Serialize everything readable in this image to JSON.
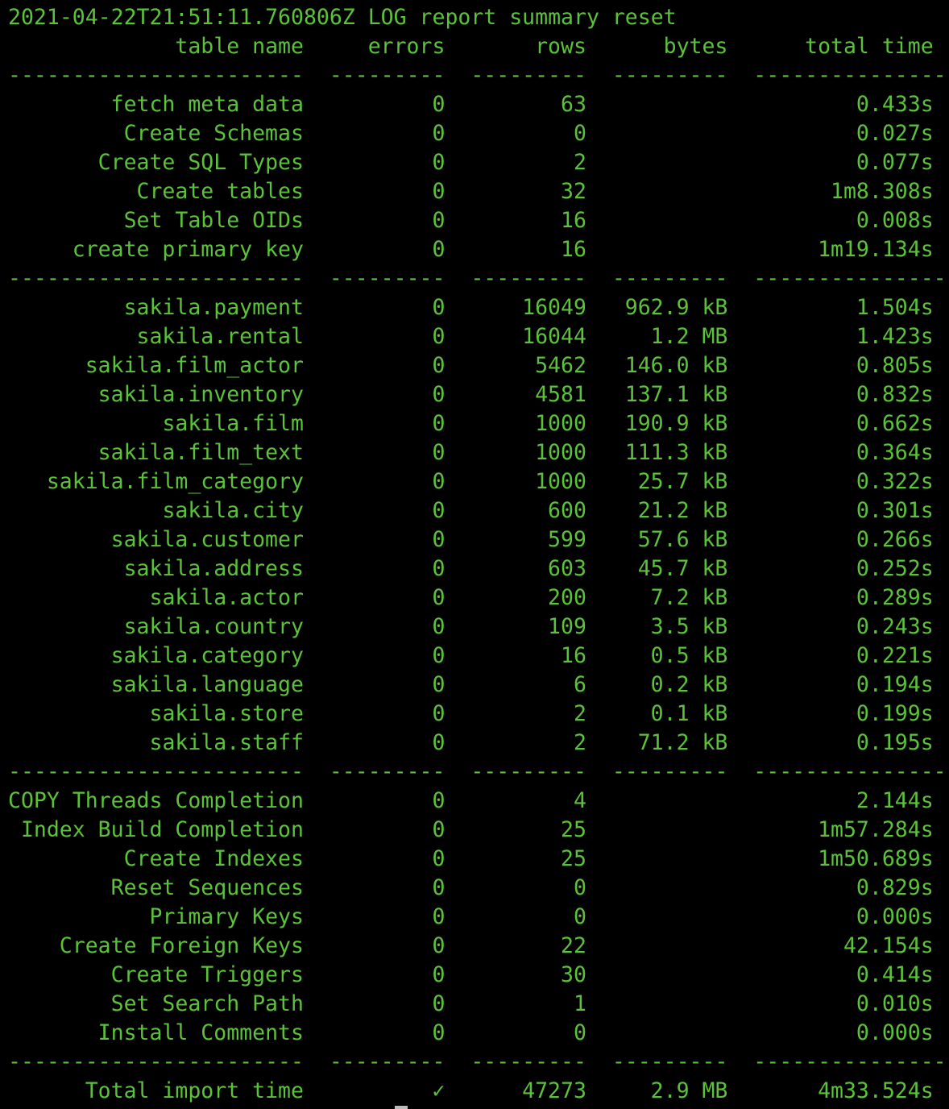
{
  "terminal": {
    "log_line": "2021-04-22T21:51:11.760806Z LOG report summary reset",
    "text_color": "#5cc13b",
    "background": "#000000",
    "headers": [
      "table name",
      "errors",
      "rows",
      "bytes",
      "total time"
    ],
    "separator": [
      "-----------------------",
      "---------",
      "---------",
      "---------",
      "---------------"
    ],
    "sections": [
      [
        [
          "fetch meta data",
          "0",
          "63",
          "",
          "0.433s"
        ],
        [
          "Create Schemas",
          "0",
          "0",
          "",
          "0.027s"
        ],
        [
          "Create SQL Types",
          "0",
          "2",
          "",
          "0.077s"
        ],
        [
          "Create tables",
          "0",
          "32",
          "",
          "1m8.308s"
        ],
        [
          "Set Table OIDs",
          "0",
          "16",
          "",
          "0.008s"
        ],
        [
          "create primary key",
          "0",
          "16",
          "",
          "1m19.134s"
        ]
      ],
      [
        [
          "sakila.payment",
          "0",
          "16049",
          "962.9 kB",
          "1.504s"
        ],
        [
          "sakila.rental",
          "0",
          "16044",
          "1.2 MB",
          "1.423s"
        ],
        [
          "sakila.film_actor",
          "0",
          "5462",
          "146.0 kB",
          "0.805s"
        ],
        [
          "sakila.inventory",
          "0",
          "4581",
          "137.1 kB",
          "0.832s"
        ],
        [
          "sakila.film",
          "0",
          "1000",
          "190.9 kB",
          "0.662s"
        ],
        [
          "sakila.film_text",
          "0",
          "1000",
          "111.3 kB",
          "0.364s"
        ],
        [
          "sakila.film_category",
          "0",
          "1000",
          "25.7 kB",
          "0.322s"
        ],
        [
          "sakila.city",
          "0",
          "600",
          "21.2 kB",
          "0.301s"
        ],
        [
          "sakila.customer",
          "0",
          "599",
          "57.6 kB",
          "0.266s"
        ],
        [
          "sakila.address",
          "0",
          "603",
          "45.7 kB",
          "0.252s"
        ],
        [
          "sakila.actor",
          "0",
          "200",
          "7.2 kB",
          "0.289s"
        ],
        [
          "sakila.country",
          "0",
          "109",
          "3.5 kB",
          "0.243s"
        ],
        [
          "sakila.category",
          "0",
          "16",
          "0.5 kB",
          "0.221s"
        ],
        [
          "sakila.language",
          "0",
          "6",
          "0.2 kB",
          "0.194s"
        ],
        [
          "sakila.store",
          "0",
          "2",
          "0.1 kB",
          "0.199s"
        ],
        [
          "sakila.staff",
          "0",
          "2",
          "71.2 kB",
          "0.195s"
        ]
      ],
      [
        [
          "COPY Threads Completion",
          "0",
          "4",
          "",
          "2.144s"
        ],
        [
          "Index Build Completion",
          "0",
          "25",
          "",
          "1m57.284s"
        ],
        [
          "Create Indexes",
          "0",
          "25",
          "",
          "1m50.689s"
        ],
        [
          "Reset Sequences",
          "0",
          "0",
          "",
          "0.829s"
        ],
        [
          "Primary Keys",
          "0",
          "0",
          "",
          "0.000s"
        ],
        [
          "Create Foreign Keys",
          "0",
          "22",
          "",
          "42.154s"
        ],
        [
          "Create Triggers",
          "0",
          "30",
          "",
          "0.414s"
        ],
        [
          "Set Search Path",
          "0",
          "1",
          "",
          "0.010s"
        ],
        [
          "Install Comments",
          "0",
          "0",
          "",
          "0.000s"
        ]
      ]
    ],
    "total": [
      "Total import time",
      "✓",
      "47273",
      "2.9 MB",
      "4m33.524s"
    ]
  }
}
